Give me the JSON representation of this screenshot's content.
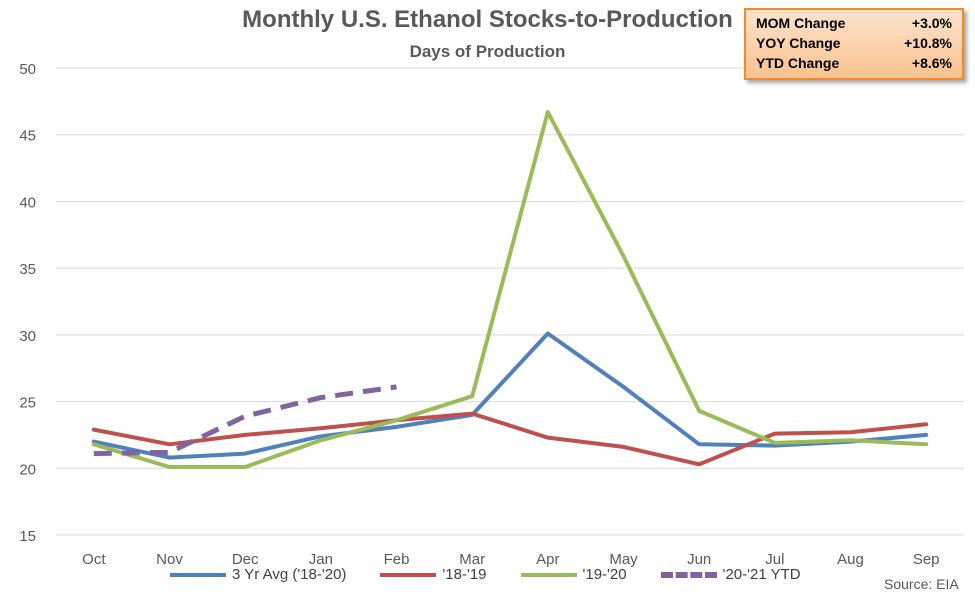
{
  "chart_data": {
    "type": "line",
    "title": "Monthly U.S. Ethanol Stocks-to-Production",
    "subtitle": "Days of Production",
    "categories": [
      "Oct",
      "Nov",
      "Dec",
      "Jan",
      "Feb",
      "Mar",
      "Apr",
      "May",
      "Jun",
      "Jul",
      "Aug",
      "Sep"
    ],
    "ylim": [
      15,
      50
    ],
    "yticks": [
      15,
      20,
      25,
      30,
      35,
      40,
      45,
      50
    ],
    "grid": true,
    "legend_position": "bottom",
    "series": [
      {
        "name": "3 Yr Avg ('18-'20)",
        "color": "#4f81bd",
        "dashed": false,
        "values": [
          22.0,
          20.8,
          21.1,
          22.4,
          23.1,
          24.0,
          30.1,
          26.1,
          21.8,
          21.7,
          22.0,
          22.5
        ]
      },
      {
        "name": "'18-'19",
        "color": "#c0504d",
        "dashed": false,
        "values": [
          22.9,
          21.8,
          22.5,
          23.0,
          23.6,
          24.1,
          22.3,
          21.6,
          20.3,
          22.6,
          22.7,
          23.3
        ]
      },
      {
        "name": "'19-'20",
        "color": "#9bbb59",
        "dashed": false,
        "values": [
          21.8,
          20.1,
          20.1,
          22.1,
          23.6,
          25.4,
          46.7,
          35.9,
          24.3,
          21.9,
          22.1,
          21.8
        ]
      },
      {
        "name": "'20-'21 YTD",
        "color": "#8064a2",
        "dashed": true,
        "values": [
          21.1,
          21.2,
          23.9,
          25.3,
          26.1,
          null,
          null,
          null,
          null,
          null,
          null,
          null
        ]
      }
    ]
  },
  "stats_box": {
    "rows": [
      {
        "label": "MOM Change",
        "value": "+3.0%"
      },
      {
        "label": "YOY Change",
        "value": "+10.8%"
      },
      {
        "label": "YTD Change",
        "value": "+8.6%"
      }
    ]
  },
  "source": "Source: EIA"
}
